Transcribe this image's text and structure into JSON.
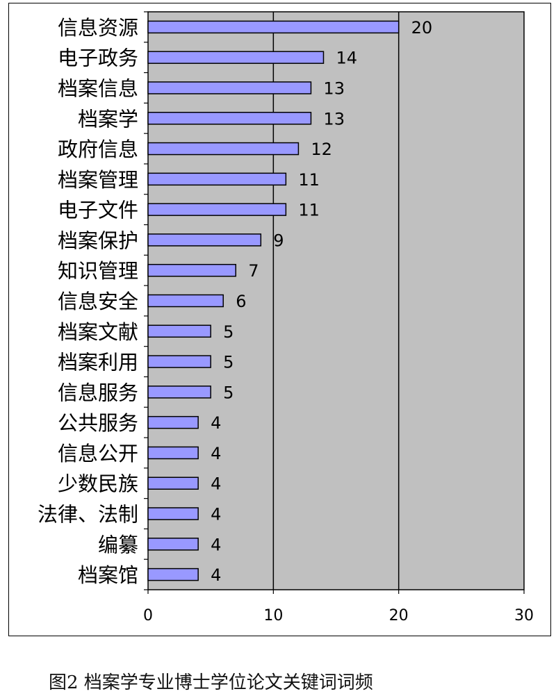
{
  "chart_data": {
    "type": "bar",
    "orientation": "horizontal",
    "categories": [
      "信息资源",
      "电子政务",
      "档案信息",
      "档案学",
      "政府信息",
      "档案管理",
      "电子文件",
      "档案保护",
      "知识管理",
      "信息安全",
      "档案文献",
      "档案利用",
      "信息服务",
      "公共服务",
      "信息公开",
      "少数民族",
      "法律、法制",
      "编纂",
      "档案馆"
    ],
    "values": [
      20,
      14,
      13,
      13,
      12,
      11,
      11,
      9,
      7,
      6,
      5,
      5,
      5,
      4,
      4,
      4,
      4,
      4,
      4
    ],
    "xlim": [
      0,
      30
    ],
    "xticks": [
      "0",
      "10",
      "20",
      "30"
    ],
    "grid": "vertical",
    "legend": "none",
    "title": "",
    "xlabel": "",
    "ylabel": "",
    "colors": {
      "bar": "#9999ff",
      "plot_bg": "#c0c0c0"
    }
  },
  "caption": "图2 档案学专业博士学位论文关键词词频"
}
